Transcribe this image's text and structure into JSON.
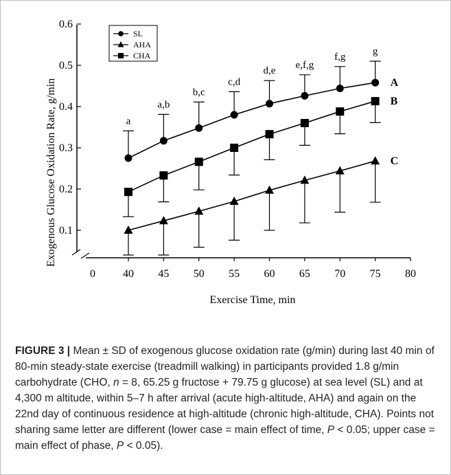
{
  "chart_data": {
    "type": "line",
    "xlabel": "Exercise Time, min",
    "ylabel": "Exogenous Glucose Oxidation Rate, g/min",
    "xlim": [
      0,
      80
    ],
    "ylim": [
      0.05,
      0.6
    ],
    "x_ticks": [
      "0",
      "40",
      "45",
      "50",
      "55",
      "60",
      "65",
      "70",
      "75",
      "80"
    ],
    "y_ticks": [
      "0.1",
      "0.2",
      "0.3",
      "0.4",
      "0.5",
      "0.6"
    ],
    "legend_position": "top-left",
    "x": [
      40,
      45,
      50,
      55,
      60,
      65,
      70,
      75
    ],
    "series": [
      {
        "name": "SL",
        "marker": "circle",
        "values": [
          0.275,
          0.317,
          0.348,
          0.38,
          0.407,
          0.426,
          0.444,
          0.458
        ],
        "error_upper": [
          0.341,
          0.381,
          0.411,
          0.436,
          0.463,
          0.477,
          0.497,
          0.51
        ],
        "phase_letter": "A"
      },
      {
        "name": "AHA",
        "marker": "triangle",
        "values": [
          0.1,
          0.123,
          0.146,
          0.17,
          0.197,
          0.221,
          0.244,
          0.268
        ],
        "error_lower": [
          0.04,
          0.04,
          0.059,
          0.076,
          0.1,
          0.118,
          0.144,
          0.168
        ],
        "phase_letter": "C"
      },
      {
        "name": "CHA",
        "marker": "square",
        "values": [
          0.193,
          0.233,
          0.266,
          0.3,
          0.333,
          0.36,
          0.388,
          0.413
        ],
        "error_lower": [
          0.133,
          0.169,
          0.198,
          0.234,
          0.271,
          0.306,
          0.334,
          0.361
        ],
        "phase_letter": "B"
      }
    ],
    "time_letters": [
      "a",
      "a,b",
      "b,c",
      "c,d",
      "d,e",
      "e,f,g",
      "f,g",
      "g"
    ],
    "colors": {
      "line": "#000000",
      "background": "#ffffff"
    }
  },
  "caption": {
    "figure_label": "FIGURE 3 |",
    "parts": [
      " Mean ± SD of exogenous glucose oxidation rate (g/min) during last 40 min of 80-min steady-state exercise (treadmill walking) in participants provided 1.8 g/min carbohydrate (CHO, ",
      "n",
      " = 8, 65.25 g fructose + 79.75 g glucose) at sea level (SL) and at 4,300 m altitude, within 5–7 h after arrival (acute high-altitude, AHA) and again on the 22nd day of continuous residence at high-altitude (chronic high-altitude, CHA). Points not sharing same letter are different (lower case = main effect of time, ",
      "P",
      " < 0.05; upper case = main effect of phase, ",
      "P",
      " < 0.05)."
    ]
  }
}
